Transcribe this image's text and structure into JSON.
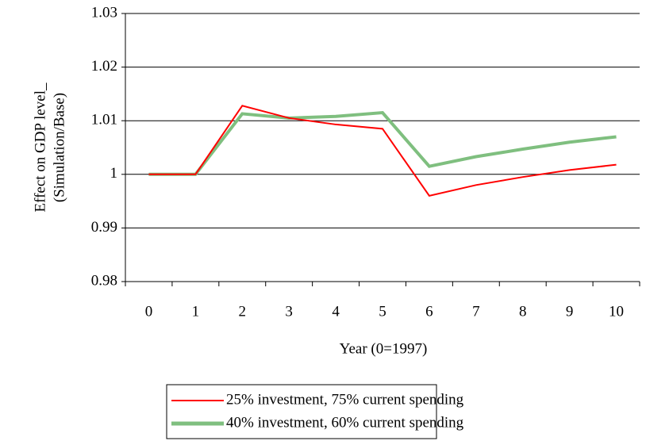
{
  "chart_data": {
    "type": "line",
    "y_label": [
      "Effect on GDP level_",
      "(Simulation/Base)"
    ],
    "x_label": "Year (0=1997)",
    "categories": [
      "0",
      "1",
      "2",
      "3",
      "4",
      "5",
      "6",
      "7",
      "8",
      "9",
      "10"
    ],
    "series": [
      {
        "name": "25% investment, 75% current spending",
        "color": "#ff0000",
        "values": [
          1.0,
          1.0,
          1.0128,
          1.0105,
          1.0093,
          1.0085,
          0.996,
          0.998,
          0.9995,
          1.0008,
          1.0018
        ]
      },
      {
        "name": "40% investment, 60% current spending",
        "color": "#7fbf7f",
        "values": [
          1.0,
          1.0,
          1.0113,
          1.0105,
          1.0108,
          1.0115,
          1.0015,
          1.0033,
          1.0047,
          1.006,
          1.007
        ]
      }
    ],
    "ylim": [
      0.98,
      1.03
    ],
    "yticks": [
      0.98,
      0.99,
      1,
      1.01,
      1.02,
      1.03
    ],
    "grid": true
  }
}
